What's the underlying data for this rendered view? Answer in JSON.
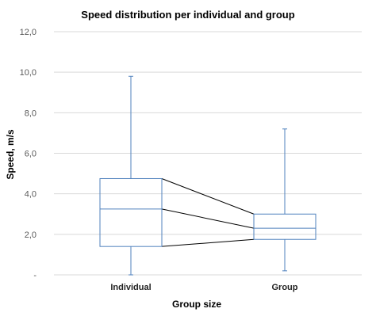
{
  "chart_data": {
    "type": "box",
    "title": "Speed distribution per individual and group",
    "xlabel": "Group size",
    "ylabel": "Speed, m/s",
    "ylim": [
      0,
      12
    ],
    "yticks": [
      {
        "value": 0,
        "label": "-"
      },
      {
        "value": 2,
        "label": "2,0"
      },
      {
        "value": 4,
        "label": "4,0"
      },
      {
        "value": 6,
        "label": "6,0"
      },
      {
        "value": 8,
        "label": "8,0"
      },
      {
        "value": 10,
        "label": "10,0"
      },
      {
        "value": 12,
        "label": "12,0"
      }
    ],
    "grid": true,
    "categories": [
      "Individual",
      "Group"
    ],
    "boxes": [
      {
        "category": "Individual",
        "min": 0.0,
        "q1": 1.4,
        "median": 3.25,
        "q3": 4.75,
        "max": 9.8
      },
      {
        "category": "Group",
        "min": 0.2,
        "q1": 1.75,
        "median": 2.3,
        "q3": 3.0,
        "max": 7.2
      }
    ],
    "connectors": [
      "q1",
      "median",
      "q3"
    ],
    "colors": {
      "box": "#4f81bd",
      "grid": "#d9d9d9",
      "connector": "#000000",
      "text": "#000000",
      "tick": "#595959"
    }
  }
}
